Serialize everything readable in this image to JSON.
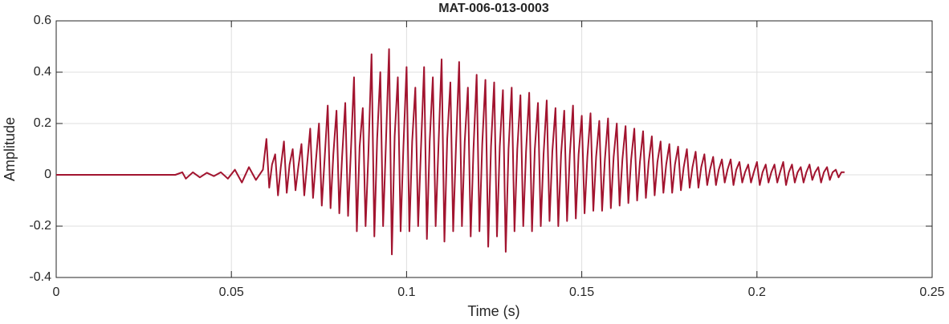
{
  "chart_data": {
    "type": "line",
    "title": "MAT-006-013-0003",
    "xlabel": "Time (s)",
    "ylabel": "Amplitude",
    "color": "#a2142f",
    "grid": true,
    "xlim": [
      0,
      0.25
    ],
    "xticks": [
      0,
      0.05,
      0.1,
      0.15,
      0.2,
      0.25
    ],
    "ylim": [
      -0.4,
      0.6
    ],
    "yticks": [
      -0.4,
      -0.2,
      0,
      0.2,
      0.4,
      0.6
    ],
    "x": [
      0,
      0.034,
      0.036,
      0.037,
      0.039,
      0.041,
      0.043,
      0.045,
      0.047,
      0.049,
      0.051,
      0.053,
      0.055,
      0.057,
      0.059,
      0.06,
      0.0608,
      0.0616,
      0.0625,
      0.0633,
      0.0641,
      0.065,
      0.0658,
      0.0666,
      0.0675,
      0.0683,
      0.0691,
      0.07,
      0.0708,
      0.0716,
      0.0725,
      0.0733,
      0.0741,
      0.075,
      0.0758,
      0.0766,
      0.0775,
      0.0783,
      0.0791,
      0.08,
      0.0808,
      0.0816,
      0.0825,
      0.0833,
      0.0841,
      0.085,
      0.0858,
      0.0866,
      0.0875,
      0.0883,
      0.0891,
      0.09,
      0.0908,
      0.0916,
      0.0925,
      0.0933,
      0.0941,
      0.095,
      0.0958,
      0.0966,
      0.0975,
      0.0983,
      0.0991,
      0.1,
      0.1008,
      0.1016,
      0.1025,
      0.1033,
      0.1041,
      0.105,
      0.1058,
      0.1066,
      0.1075,
      0.1083,
      0.1091,
      0.11,
      0.1108,
      0.1116,
      0.1125,
      0.1133,
      0.1141,
      0.115,
      0.1158,
      0.1166,
      0.1175,
      0.1183,
      0.1191,
      0.12,
      0.1208,
      0.1216,
      0.1225,
      0.1233,
      0.1241,
      0.125,
      0.1258,
      0.1266,
      0.1275,
      0.1283,
      0.1291,
      0.13,
      0.1308,
      0.1316,
      0.1325,
      0.1333,
      0.1341,
      0.135,
      0.1358,
      0.1366,
      0.1375,
      0.1383,
      0.1391,
      0.14,
      0.1408,
      0.1416,
      0.1425,
      0.1433,
      0.1441,
      0.145,
      0.1458,
      0.1466,
      0.1475,
      0.1483,
      0.1491,
      0.15,
      0.1508,
      0.1516,
      0.1525,
      0.1533,
      0.1541,
      0.155,
      0.1558,
      0.1566,
      0.1575,
      0.1583,
      0.1591,
      0.16,
      0.1608,
      0.1616,
      0.1625,
      0.1633,
      0.1641,
      0.165,
      0.1658,
      0.1666,
      0.1675,
      0.1683,
      0.1691,
      0.17,
      0.1708,
      0.1716,
      0.1725,
      0.1733,
      0.1741,
      0.175,
      0.1758,
      0.1766,
      0.1775,
      0.1783,
      0.1791,
      0.18,
      0.1808,
      0.1816,
      0.1825,
      0.1833,
      0.1841,
      0.185,
      0.1858,
      0.1866,
      0.1875,
      0.1883,
      0.1891,
      0.19,
      0.1908,
      0.1916,
      0.1925,
      0.1933,
      0.1941,
      0.195,
      0.1958,
      0.1966,
      0.1975,
      0.1983,
      0.1991,
      0.2,
      0.2008,
      0.2016,
      0.2025,
      0.2033,
      0.2041,
      0.205,
      0.2058,
      0.2066,
      0.2075,
      0.2083,
      0.2091,
      0.21,
      0.2108,
      0.2116,
      0.2125,
      0.2133,
      0.2141,
      0.215,
      0.2158,
      0.2166,
      0.2175,
      0.2183,
      0.2191,
      0.22,
      0.2208,
      0.2216,
      0.2225,
      0.2233,
      0.2241,
      0.225
    ],
    "values": [
      0,
      0,
      0.01,
      -0.015,
      0.01,
      -0.01,
      0.008,
      -0.005,
      0.01,
      -0.015,
      0.02,
      -0.03,
      0.03,
      -0.02,
      0.02,
      0.14,
      -0.05,
      0.04,
      0.08,
      -0.08,
      0.03,
      0.13,
      -0.07,
      0.04,
      0.1,
      -0.06,
      0.03,
      0.12,
      -0.08,
      0.04,
      0.18,
      -0.09,
      0.05,
      0.2,
      -0.12,
      0.06,
      0.27,
      -0.13,
      0.08,
      0.25,
      -0.15,
      0.07,
      0.28,
      -0.16,
      0.09,
      0.38,
      -0.22,
      0.11,
      0.26,
      -0.2,
      0.08,
      0.47,
      -0.24,
      0.14,
      0.4,
      -0.2,
      0.12,
      0.49,
      -0.31,
      0.15,
      0.38,
      -0.22,
      0.11,
      0.42,
      -0.22,
      0.13,
      0.34,
      -0.2,
      0.1,
      0.42,
      -0.25,
      0.13,
      0.38,
      -0.2,
      0.11,
      0.45,
      -0.26,
      0.14,
      0.36,
      -0.22,
      0.11,
      0.44,
      -0.2,
      0.13,
      0.34,
      -0.24,
      0.1,
      0.39,
      -0.22,
      0.12,
      0.37,
      -0.28,
      0.11,
      0.36,
      -0.24,
      0.11,
      0.33,
      -0.3,
      0.1,
      0.34,
      -0.22,
      0.1,
      0.31,
      -0.2,
      0.09,
      0.32,
      -0.22,
      0.1,
      0.28,
      -0.2,
      0.08,
      0.29,
      -0.18,
      0.09,
      0.26,
      -0.2,
      0.08,
      0.25,
      -0.18,
      0.08,
      0.27,
      -0.17,
      0.08,
      0.23,
      -0.15,
      0.07,
      0.24,
      -0.14,
      0.07,
      0.21,
      -0.14,
      0.06,
      0.22,
      -0.13,
      0.07,
      0.2,
      -0.12,
      0.06,
      0.19,
      -0.11,
      0.06,
      0.18,
      -0.1,
      0.05,
      0.17,
      -0.09,
      0.05,
      0.15,
      -0.08,
      0.05,
      0.13,
      -0.07,
      0.04,
      0.12,
      -0.07,
      0.04,
      0.11,
      -0.06,
      0.03,
      0.1,
      -0.05,
      0.03,
      0.09,
      -0.05,
      0.03,
      0.08,
      -0.04,
      0.02,
      0.07,
      -0.04,
      0.02,
      0.06,
      -0.03,
      0.02,
      0.06,
      -0.04,
      0.02,
      0.05,
      -0.03,
      0.01,
      0.04,
      -0.03,
      0.01,
      0.05,
      -0.04,
      0.01,
      0.04,
      -0.03,
      0.01,
      0.04,
      -0.03,
      0.01,
      0.05,
      -0.04,
      0.01,
      0.04,
      -0.03,
      0.01,
      0.03,
      -0.03,
      0.01,
      0.04,
      -0.02,
      0.01,
      0.03,
      -0.03,
      0.01,
      0.03,
      -0.02,
      0.01,
      0.02,
      -0.01,
      0.01,
      0.01
    ]
  }
}
